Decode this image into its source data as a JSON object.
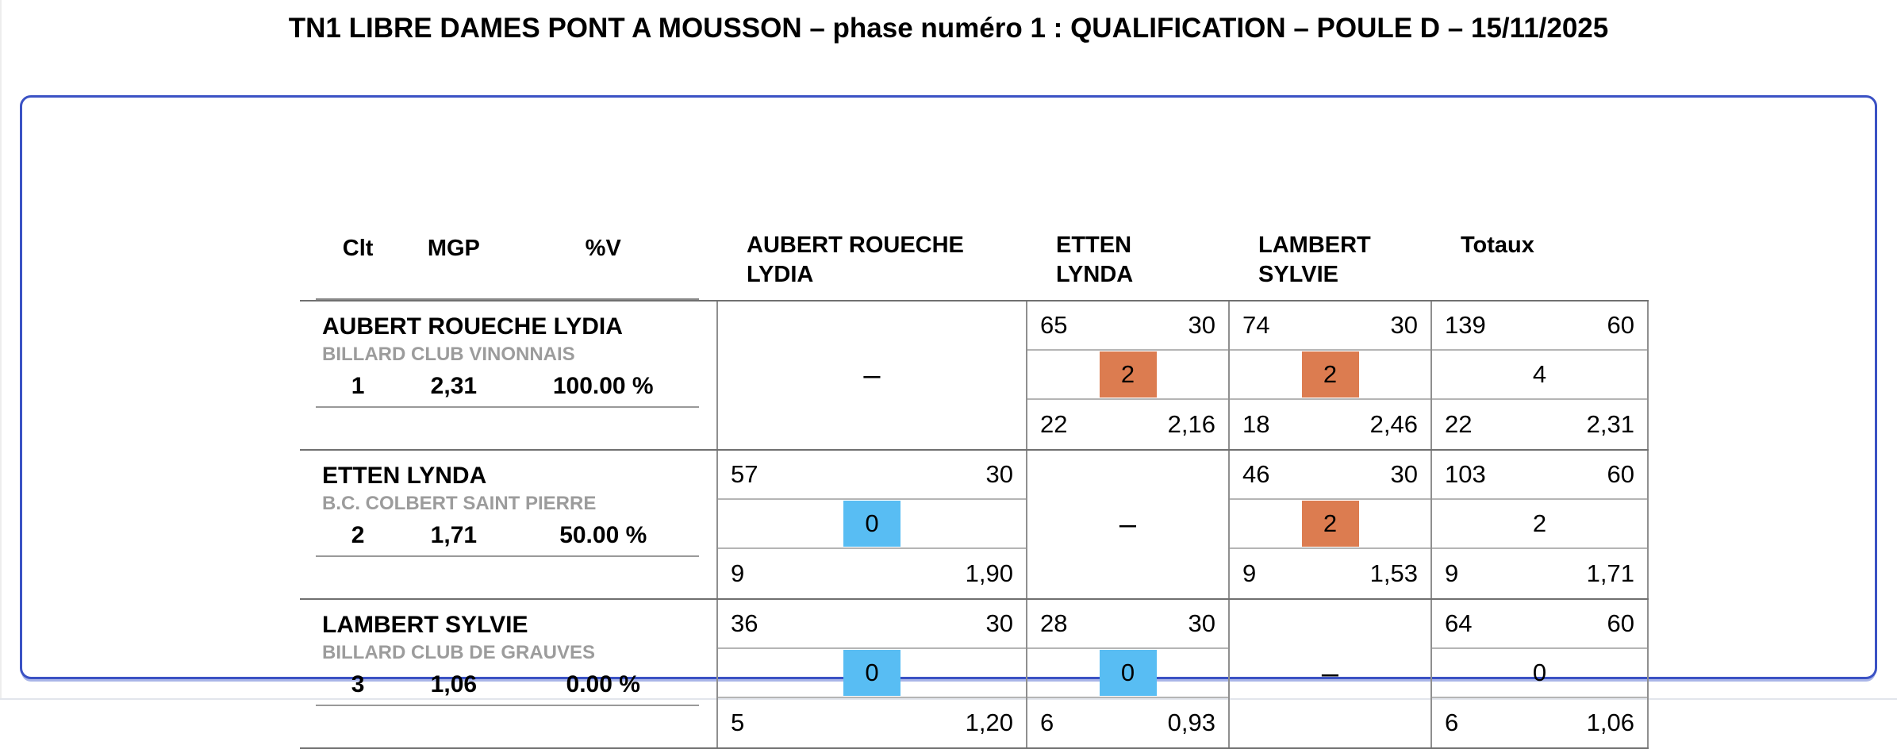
{
  "title": "TN1 LIBRE DAMES PONT A MOUSSON – phase numéro 1 : QUALIFICATION – POULE D – 15/11/2025",
  "stats_header": {
    "clt": "Clt",
    "mgp": "MGP",
    "pv": "%V"
  },
  "column_headers": [
    "AUBERT ROUECHE LYDIA",
    "ETTEN LYNDA",
    "LAMBERT SYLVIE",
    "Totaux"
  ],
  "dash": "–",
  "colors": {
    "win_badge": "#DC7C50",
    "loss_badge": "#58BDF3",
    "panel_border": "#3B52C4"
  },
  "players": [
    {
      "name": "AUBERT ROUECHE LYDIA",
      "club": "BILLARD CLUB VINONNAIS",
      "clt": "1",
      "mgp": "2,31",
      "pv": "100.00 %",
      "cells": [
        {
          "type": "self"
        },
        {
          "type": "match",
          "points_scored": "65",
          "distance": "30",
          "match_points": "2",
          "result": "win",
          "innings": "22",
          "average": "2,16"
        },
        {
          "type": "match",
          "points_scored": "74",
          "distance": "30",
          "match_points": "2",
          "result": "win",
          "innings": "18",
          "average": "2,46"
        },
        {
          "type": "total",
          "points_scored": "139",
          "distance": "60",
          "match_points": "4",
          "innings": "22",
          "average": "2,31"
        }
      ]
    },
    {
      "name": "ETTEN LYNDA",
      "club": "B.C. COLBERT SAINT PIERRE",
      "clt": "2",
      "mgp": "1,71",
      "pv": "50.00 %",
      "cells": [
        {
          "type": "match",
          "points_scored": "57",
          "distance": "30",
          "match_points": "0",
          "result": "loss",
          "innings": "9",
          "average": "1,90"
        },
        {
          "type": "self"
        },
        {
          "type": "match",
          "points_scored": "46",
          "distance": "30",
          "match_points": "2",
          "result": "win",
          "innings": "9",
          "average": "1,53"
        },
        {
          "type": "total",
          "points_scored": "103",
          "distance": "60",
          "match_points": "2",
          "innings": "9",
          "average": "1,71"
        }
      ]
    },
    {
      "name": "LAMBERT SYLVIE",
      "club": "BILLARD CLUB DE GRAUVES",
      "clt": "3",
      "mgp": "1,06",
      "pv": "0.00 %",
      "cells": [
        {
          "type": "match",
          "points_scored": "36",
          "distance": "30",
          "match_points": "0",
          "result": "loss",
          "innings": "5",
          "average": "1,20"
        },
        {
          "type": "match",
          "points_scored": "28",
          "distance": "30",
          "match_points": "0",
          "result": "loss",
          "innings": "6",
          "average": "0,93"
        },
        {
          "type": "self"
        },
        {
          "type": "total",
          "points_scored": "64",
          "distance": "60",
          "match_points": "0",
          "innings": "6",
          "average": "1,06"
        }
      ]
    }
  ]
}
